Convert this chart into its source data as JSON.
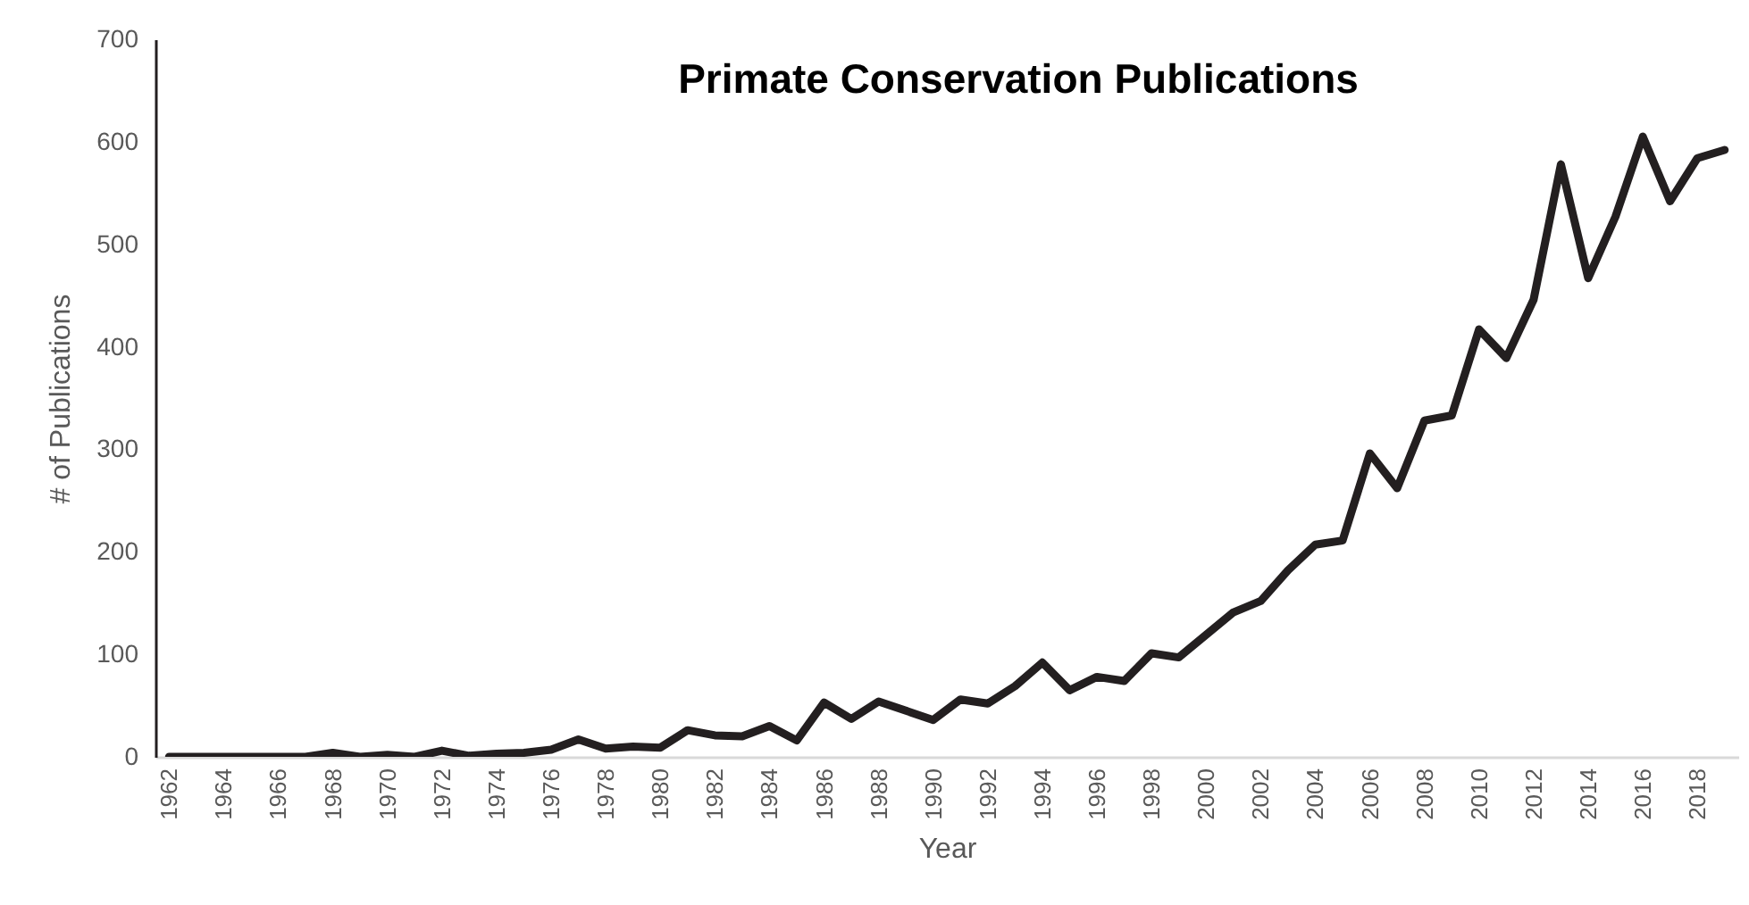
{
  "chart_data": {
    "type": "line",
    "title": "Primate Conservation Publications",
    "xlabel": "Year",
    "ylabel": "# of Publications",
    "x": [
      1962,
      1963,
      1964,
      1965,
      1966,
      1967,
      1968,
      1969,
      1970,
      1971,
      1972,
      1973,
      1974,
      1975,
      1976,
      1977,
      1978,
      1979,
      1980,
      1981,
      1982,
      1983,
      1984,
      1985,
      1986,
      1987,
      1988,
      1989,
      1990,
      1991,
      1992,
      1993,
      1994,
      1995,
      1996,
      1997,
      1998,
      1999,
      2000,
      2001,
      2002,
      2003,
      2004,
      2005,
      2006,
      2007,
      2008,
      2009,
      2010,
      2011,
      2012,
      2013,
      2014,
      2015,
      2016,
      2017,
      2018,
      2019
    ],
    "series": [
      {
        "color": "#231f20",
        "values": [
          0,
          0,
          0,
          0,
          0,
          0,
          4,
          0,
          2,
          0,
          6,
          1,
          3,
          4,
          7,
          17,
          8,
          10,
          9,
          26,
          21,
          20,
          30,
          16,
          53,
          37,
          54,
          45,
          36,
          56,
          52,
          69,
          92,
          65,
          78,
          74,
          101,
          97,
          119,
          141,
          152,
          182,
          207,
          211,
          296,
          262,
          328,
          333,
          417,
          389,
          446,
          578,
          467,
          527,
          605,
          542,
          584,
          592
        ]
      }
    ],
    "xlim": [
      1961.5,
      2019.5
    ],
    "xticks": [
      1962,
      1964,
      1966,
      1968,
      1970,
      1972,
      1974,
      1976,
      1978,
      1980,
      1982,
      1984,
      1986,
      1988,
      1990,
      1992,
      1994,
      1996,
      1998,
      2000,
      2002,
      2004,
      2006,
      2008,
      2010,
      2012,
      2014,
      2016,
      2018
    ],
    "ylim": [
      0,
      700
    ],
    "yticks": [
      0,
      100,
      200,
      300,
      400,
      500,
      600,
      700
    ],
    "grid": false,
    "marker": "none",
    "line_style": "solid"
  }
}
